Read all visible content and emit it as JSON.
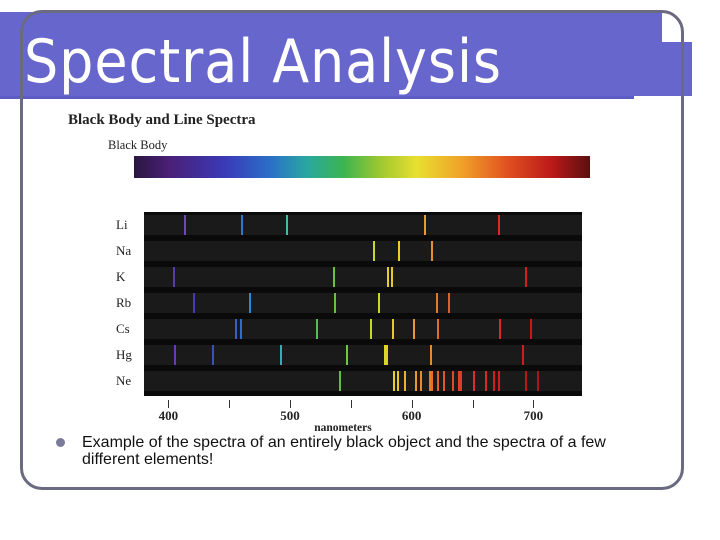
{
  "slide": {
    "title": "Spectral Analysis",
    "caption": "Example of the spectra of an entirely black object and the spectra of a few different elements!"
  },
  "figure": {
    "title": "Black Body and Line Spectra",
    "blackbody_label": "Black Body",
    "elements": [
      {
        "label": "Li",
        "lines": [
          {
            "nm": 413,
            "color": "#6a4ab8"
          },
          {
            "nm": 460,
            "color": "#2a7ad0"
          },
          {
            "nm": 497,
            "color": "#40c0a0"
          },
          {
            "nm": 610,
            "color": "#e89a30"
          },
          {
            "nm": 671,
            "color": "#e02828"
          }
        ]
      },
      {
        "label": "Na",
        "lines": [
          {
            "nm": 568,
            "color": "#c8d828"
          },
          {
            "nm": 589,
            "color": "#f0d020"
          },
          {
            "nm": 616,
            "color": "#e89030"
          }
        ]
      },
      {
        "label": "K",
        "lines": [
          {
            "nm": 404,
            "color": "#5a3aa8"
          },
          {
            "nm": 535,
            "color": "#70c040"
          },
          {
            "nm": 580,
            "color": "#e0d028"
          },
          {
            "nm": 583,
            "color": "#e8c828"
          },
          {
            "nm": 693,
            "color": "#d02020"
          }
        ]
      },
      {
        "label": "Rb",
        "lines": [
          {
            "nm": 420,
            "color": "#4a3ab8"
          },
          {
            "nm": 466,
            "color": "#2a88d0"
          },
          {
            "nm": 536,
            "color": "#6cc040"
          },
          {
            "nm": 572,
            "color": "#c8d828"
          },
          {
            "nm": 620,
            "color": "#e87828"
          },
          {
            "nm": 630,
            "color": "#e06028"
          }
        ]
      },
      {
        "label": "Cs",
        "lines": [
          {
            "nm": 455,
            "color": "#3a60c8"
          },
          {
            "nm": 459,
            "color": "#2a70c8"
          },
          {
            "nm": 521,
            "color": "#50c050"
          },
          {
            "nm": 566,
            "color": "#c0d830"
          },
          {
            "nm": 584,
            "color": "#e8c828"
          },
          {
            "nm": 601,
            "color": "#e89a30"
          },
          {
            "nm": 621,
            "color": "#e07028"
          },
          {
            "nm": 672,
            "color": "#d82828"
          },
          {
            "nm": 697,
            "color": "#c81818"
          }
        ]
      },
      {
        "label": "Hg",
        "lines": [
          {
            "nm": 405,
            "color": "#6a3ab8"
          },
          {
            "nm": 436,
            "color": "#3a50c0"
          },
          {
            "nm": 492,
            "color": "#30b0b0"
          },
          {
            "nm": 546,
            "color": "#70c840"
          },
          {
            "nm": 577,
            "color": "#d8d828"
          },
          {
            "nm": 579,
            "color": "#e0d028"
          },
          {
            "nm": 615,
            "color": "#e88a30"
          },
          {
            "nm": 691,
            "color": "#c82020"
          }
        ]
      },
      {
        "label": "Ne",
        "lines": [
          {
            "nm": 540,
            "color": "#60c040"
          },
          {
            "nm": 585,
            "color": "#e8d028"
          },
          {
            "nm": 588,
            "color": "#e8c828"
          },
          {
            "nm": 594,
            "color": "#f0b028"
          },
          {
            "nm": 603,
            "color": "#e89a30"
          },
          {
            "nm": 607,
            "color": "#e88a30"
          },
          {
            "nm": 614,
            "color": "#e87a28"
          },
          {
            "nm": 616,
            "color": "#e87028"
          },
          {
            "nm": 621,
            "color": "#e06028"
          },
          {
            "nm": 626,
            "color": "#e05828"
          },
          {
            "nm": 633,
            "color": "#e04a28"
          },
          {
            "nm": 638,
            "color": "#e04028"
          },
          {
            "nm": 640,
            "color": "#e03828"
          },
          {
            "nm": 650,
            "color": "#d83028"
          },
          {
            "nm": 660,
            "color": "#d82828"
          },
          {
            "nm": 667,
            "color": "#d02020"
          },
          {
            "nm": 671,
            "color": "#c82020"
          },
          {
            "nm": 693,
            "color": "#b81818"
          },
          {
            "nm": 703,
            "color": "#a81818"
          }
        ]
      }
    ],
    "axis": {
      "ticks": [
        {
          "nm": 400,
          "label": "400"
        },
        {
          "nm": 450,
          "label": ""
        },
        {
          "nm": 500,
          "label": "500"
        },
        {
          "nm": 550,
          "label": ""
        },
        {
          "nm": 600,
          "label": "600"
        },
        {
          "nm": 650,
          "label": ""
        },
        {
          "nm": 700,
          "label": "700"
        }
      ],
      "unit": "nanometers",
      "range_nm": [
        380,
        740
      ]
    }
  },
  "colors": {
    "title_bar": "#6666cc",
    "frame": "#6a6a80",
    "bullet": "#7a7a9a"
  },
  "icons": {
    "bullet": "bullet-icon"
  }
}
